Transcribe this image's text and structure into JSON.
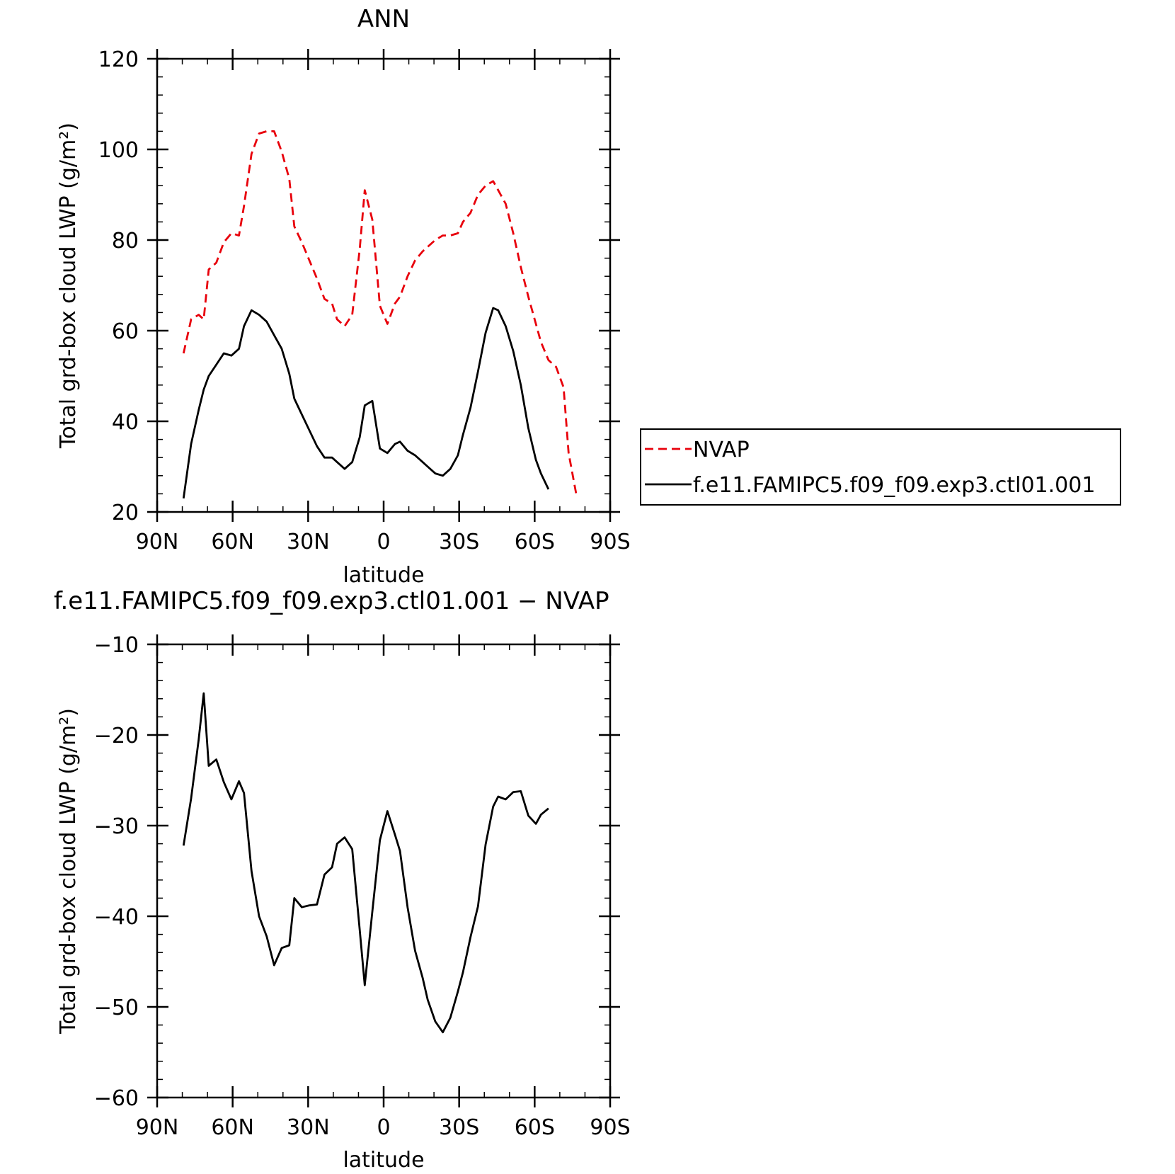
{
  "chart_data": [
    {
      "type": "line",
      "title": "ANN",
      "xlabel": "latitude",
      "ylabel": "Total grd-box cloud LWP (g/m²)",
      "xlim": [
        90,
        -90
      ],
      "ylim": [
        20,
        120
      ],
      "x_ticks": [
        {
          "value": 90,
          "label": "90N"
        },
        {
          "value": 60,
          "label": "60N"
        },
        {
          "value": 30,
          "label": "30N"
        },
        {
          "value": 0,
          "label": "0"
        },
        {
          "value": -30,
          "label": "30S"
        },
        {
          "value": -60,
          "label": "60S"
        },
        {
          "value": -90,
          "label": "90S"
        }
      ],
      "y_ticks": [
        {
          "value": 20,
          "label": "20"
        },
        {
          "value": 40,
          "label": "40"
        },
        {
          "value": 60,
          "label": "60"
        },
        {
          "value": 80,
          "label": "80"
        },
        {
          "value": 100,
          "label": "100"
        },
        {
          "value": 120,
          "label": "120"
        }
      ],
      "legend": {
        "placement": "right"
      },
      "series": [
        {
          "name": "NVAP",
          "color": "#e8000b",
          "dash": "dashed",
          "x": [
            79.5,
            76.5,
            73.5,
            71.5,
            69.5,
            66.5,
            63.5,
            60.5,
            57.5,
            55.5,
            52.5,
            49.5,
            46.5,
            43.5,
            40.5,
            37.5,
            35.5,
            32.5,
            29.5,
            26.5,
            23.5,
            20.5,
            18.5,
            15.5,
            12.5,
            9.5,
            7.5,
            4.5,
            1.5,
            -1.5,
            -4.5,
            -6.5,
            -9.5,
            -12.5,
            -15.5,
            -17.5,
            -20.5,
            -23.5,
            -26.5,
            -29.5,
            -31.5,
            -34.5,
            -37.5,
            -40.5,
            -43.5,
            -45.5,
            -48.5,
            -51.5,
            -54.5,
            -57.5,
            -60.5,
            -62.5,
            -65.5,
            -68.5,
            -71.5,
            -73.5,
            -76.5
          ],
          "values": [
            55.0,
            62.5,
            63.5,
            62.5,
            73.5,
            75.0,
            79.5,
            81.5,
            81.0,
            87.5,
            99.0,
            103.5,
            104.0,
            104.0,
            99.5,
            93.5,
            83.0,
            79.5,
            75.5,
            71.5,
            67.0,
            66.0,
            62.5,
            61.0,
            63.5,
            78.0,
            91.0,
            84.5,
            65.5,
            61.5,
            66.0,
            67.5,
            72.0,
            75.5,
            77.5,
            78.5,
            80.0,
            81.0,
            81.0,
            81.5,
            84.0,
            86.0,
            90.0,
            92.0,
            93.0,
            91.0,
            88.0,
            81.5,
            74.0,
            67.5,
            61.5,
            57.5,
            53.5,
            52.0,
            47.5,
            33.0,
            24.0
          ]
        },
        {
          "name": "f.e11.FAMIPC5.f09_f09.exp3.ctl01.001",
          "color": "#000000",
          "dash": "solid",
          "x": [
            79.5,
            76.5,
            73.5,
            71.5,
            69.5,
            66.5,
            63.5,
            60.5,
            57.5,
            55.5,
            52.5,
            49.5,
            46.5,
            43.5,
            40.5,
            37.5,
            35.5,
            32.5,
            29.5,
            26.5,
            23.5,
            20.5,
            18.5,
            15.5,
            12.5,
            9.5,
            7.5,
            4.5,
            1.5,
            -1.5,
            -4.5,
            -6.5,
            -9.5,
            -12.5,
            -15.5,
            -17.5,
            -20.5,
            -23.5,
            -26.5,
            -29.5,
            -31.5,
            -34.5,
            -37.5,
            -40.5,
            -43.5,
            -45.5,
            -48.5,
            -51.5,
            -54.5,
            -57.5,
            -60.5,
            -62.5,
            -65.5
          ],
          "values": [
            23.0,
            35.0,
            42.5,
            47.0,
            50.0,
            52.5,
            55.0,
            54.5,
            56.0,
            61.0,
            64.5,
            63.5,
            62.0,
            59.0,
            56.0,
            50.5,
            45.0,
            41.5,
            38.0,
            34.5,
            32.0,
            32.0,
            31.0,
            29.5,
            31.0,
            36.5,
            43.5,
            44.5,
            34.0,
            33.0,
            35.0,
            35.5,
            33.5,
            32.5,
            31.0,
            30.0,
            28.5,
            28.0,
            29.5,
            32.5,
            37.0,
            43.0,
            51.0,
            59.5,
            65.0,
            64.5,
            61.0,
            55.5,
            48.0,
            38.5,
            31.5,
            28.5,
            25.0
          ]
        }
      ]
    },
    {
      "type": "line",
      "title": "f.e11.FAMIPC5.f09_f09.exp3.ctl01.001 - NVAP",
      "xlabel": "latitude",
      "ylabel": "Total grd-box cloud LWP (g/m²)",
      "xlim": [
        90,
        -90
      ],
      "ylim": [
        -60,
        -10
      ],
      "x_ticks": [
        {
          "value": 90,
          "label": "90N"
        },
        {
          "value": 60,
          "label": "60N"
        },
        {
          "value": 30,
          "label": "30N"
        },
        {
          "value": 0,
          "label": "0"
        },
        {
          "value": -30,
          "label": "30S"
        },
        {
          "value": -60,
          "label": "60S"
        },
        {
          "value": -90,
          "label": "90S"
        }
      ],
      "y_ticks": [
        {
          "value": -10,
          "label": "-10"
        },
        {
          "value": -20,
          "label": "-20"
        },
        {
          "value": -30,
          "label": "-30"
        },
        {
          "value": -40,
          "label": "-40"
        },
        {
          "value": -50,
          "label": "-50"
        },
        {
          "value": -60,
          "label": "-60"
        }
      ],
      "series": [
        {
          "color": "#000000",
          "dash": "solid",
          "x": [
            79.5,
            76.5,
            73.5,
            71.5,
            69.5,
            66.5,
            63.5,
            60.5,
            57.5,
            55.5,
            52.5,
            49.5,
            46.5,
            43.5,
            40.5,
            37.5,
            35.5,
            32.5,
            29.5,
            26.5,
            23.5,
            20.5,
            18.5,
            15.5,
            12.5,
            9.5,
            7.5,
            4.5,
            1.5,
            -1.5,
            -4.5,
            -6.5,
            -9.5,
            -12.5,
            -15.5,
            -17.5,
            -20.5,
            -23.5,
            -26.5,
            -29.5,
            -31.5,
            -34.5,
            -37.5,
            -40.5,
            -43.5,
            -45.5,
            -48.5,
            -51.5,
            -54.5,
            -57.5,
            -60.5,
            -62.5,
            -65.5
          ],
          "values": [
            -32.2,
            -27.0,
            -20.5,
            -15.4,
            -23.4,
            -22.7,
            -25.2,
            -27.1,
            -25.1,
            -26.4,
            -35.0,
            -40.0,
            -42.2,
            -45.4,
            -43.5,
            -43.2,
            -38.0,
            -39.0,
            -38.8,
            -38.7,
            -35.4,
            -34.6,
            -32.0,
            -31.3,
            -32.6,
            -41.5,
            -47.6,
            -39.5,
            -31.6,
            -28.4,
            -31.0,
            -32.8,
            -39.0,
            -43.8,
            -46.8,
            -49.2,
            -51.6,
            -52.8,
            -51.2,
            -48.3,
            -46.2,
            -42.3,
            -38.9,
            -32.1,
            -27.9,
            -26.8,
            -27.1,
            -26.3,
            -26.2,
            -28.9,
            -29.8,
            -28.8,
            -28.1
          ]
        }
      ]
    }
  ]
}
